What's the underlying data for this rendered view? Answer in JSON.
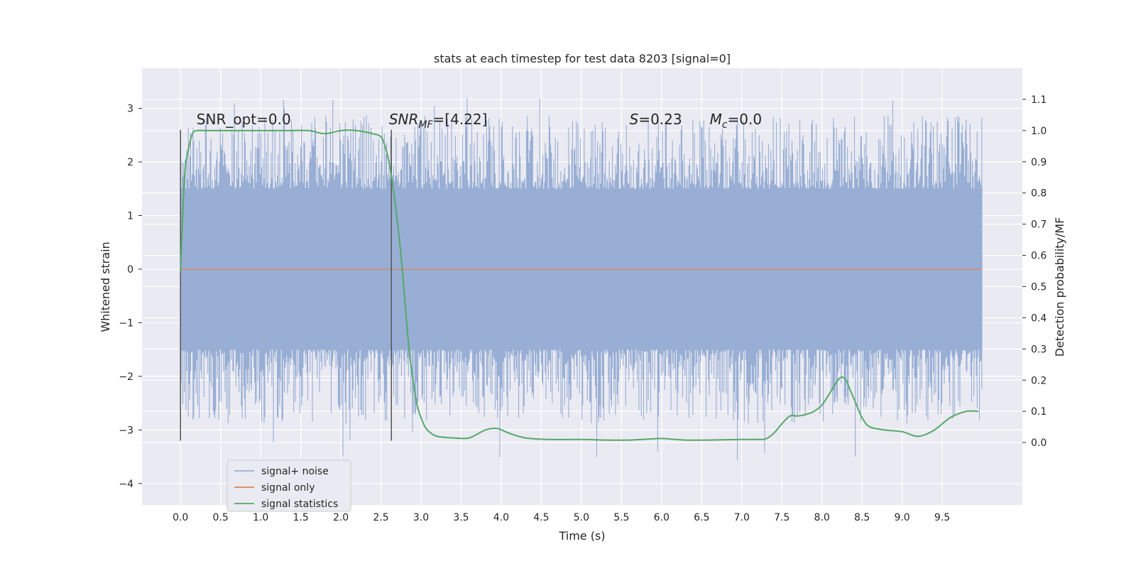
{
  "chart_data": {
    "type": "line",
    "title": "stats at each timestep for test data 8203 [signal=0]",
    "xlabel": "Time (s)",
    "ylabel": "Whitened strain",
    "y2label": "Detection probability/MF",
    "xlim": [
      -0.48,
      10.5
    ],
    "ylim": [
      -4.4,
      3.75
    ],
    "y2lim": [
      -0.2,
      1.2
    ],
    "x_ticks": [
      "0.0",
      "0.5",
      "1.0",
      "1.5",
      "2.0",
      "2.5",
      "3.0",
      "3.5",
      "4.0",
      "4.5",
      "5.0",
      "5.5",
      "6.0",
      "6.5",
      "7.0",
      "7.5",
      "8.0",
      "8.5",
      "9.0",
      "9.5"
    ],
    "y_ticks": [
      "3",
      "2",
      "1",
      "0",
      "−1",
      "−2",
      "−3",
      "−4"
    ],
    "y2_ticks": [
      "1.1",
      "1.0",
      "0.9",
      "0.8",
      "0.7",
      "0.6",
      "0.5",
      "0.4",
      "0.3",
      "0.2",
      "0.1",
      "0.0"
    ],
    "grid": true,
    "legend_position": "lower-left",
    "series": [
      {
        "name": "signal+ noise",
        "axis": "left",
        "color": "#98aed4",
        "style": "dense noise trace",
        "x_range": [
          0.0,
          10.0
        ],
        "core_band": [
          -1.5,
          1.5
        ],
        "typical_peaks": [
          -2.7,
          2.7
        ],
        "extreme_peaks": [
          -3.6,
          3.3
        ]
      },
      {
        "name": "signal only",
        "axis": "left",
        "color": "#dd8452",
        "x": [
          0.0,
          10.0
        ],
        "values": [
          0.0,
          0.0
        ]
      },
      {
        "name": "signal statistics",
        "axis": "right",
        "color": "#55a868",
        "x": [
          0.0,
          0.05,
          0.1,
          0.15,
          0.2,
          0.3,
          0.5,
          0.8,
          1.0,
          1.3,
          1.6,
          1.8,
          2.0,
          2.2,
          2.4,
          2.5,
          2.55,
          2.6,
          2.65,
          2.7,
          2.75,
          2.8,
          2.85,
          2.9,
          2.95,
          3.0,
          3.05,
          3.1,
          3.2,
          3.4,
          3.6,
          3.8,
          3.95,
          4.1,
          4.3,
          4.6,
          5.0,
          5.3,
          5.6,
          5.9,
          6.0,
          6.3,
          6.6,
          7.0,
          7.2,
          7.3,
          7.4,
          7.5,
          7.6,
          7.7,
          7.8,
          7.9,
          8.0,
          8.1,
          8.2,
          8.25,
          8.3,
          8.35,
          8.4,
          8.5,
          8.6,
          8.8,
          9.0,
          9.2,
          9.4,
          9.6,
          9.8,
          9.95
        ],
        "values": [
          0.55,
          0.85,
          0.94,
          0.99,
          1.0,
          1.0,
          1.0,
          1.0,
          1.0,
          1.0,
          1.0,
          0.99,
          1.0,
          1.0,
          0.99,
          0.98,
          0.95,
          0.9,
          0.82,
          0.72,
          0.6,
          0.45,
          0.3,
          0.2,
          0.12,
          0.08,
          0.05,
          0.035,
          0.02,
          0.015,
          0.015,
          0.04,
          0.045,
          0.03,
          0.015,
          0.01,
          0.01,
          0.008,
          0.008,
          0.012,
          0.013,
          0.008,
          0.008,
          0.01,
          0.01,
          0.012,
          0.03,
          0.06,
          0.085,
          0.085,
          0.09,
          0.1,
          0.12,
          0.16,
          0.2,
          0.21,
          0.2,
          0.17,
          0.14,
          0.08,
          0.05,
          0.04,
          0.035,
          0.02,
          0.04,
          0.08,
          0.1,
          0.1
        ]
      }
    ],
    "markers": [
      {
        "x": 0.0,
        "y_top": 2.6,
        "y_bottom": -3.2
      },
      {
        "x": 2.63,
        "y_top": 2.6,
        "y_bottom": -3.2
      }
    ],
    "annotations": [
      {
        "text": "SNR_opt=0.0",
        "x": 0.2,
        "y": 2.7
      },
      {
        "text": "SNR",
        "sub": "MF",
        "suffix": "=[4.22]",
        "x": 2.6,
        "y": 2.7,
        "italic_base": true
      },
      {
        "text": "S",
        "suffix": "=0.23",
        "x": 5.6,
        "y": 2.7,
        "italic_base": true
      },
      {
        "text": "M",
        "sub": "c",
        "suffix": "=0.0",
        "x": 6.6,
        "y": 2.7,
        "italic_base": true
      }
    ]
  },
  "colors": {
    "plot_background": "#eaeaf2",
    "grid": "#ffffff",
    "marker_line": "#555555"
  }
}
